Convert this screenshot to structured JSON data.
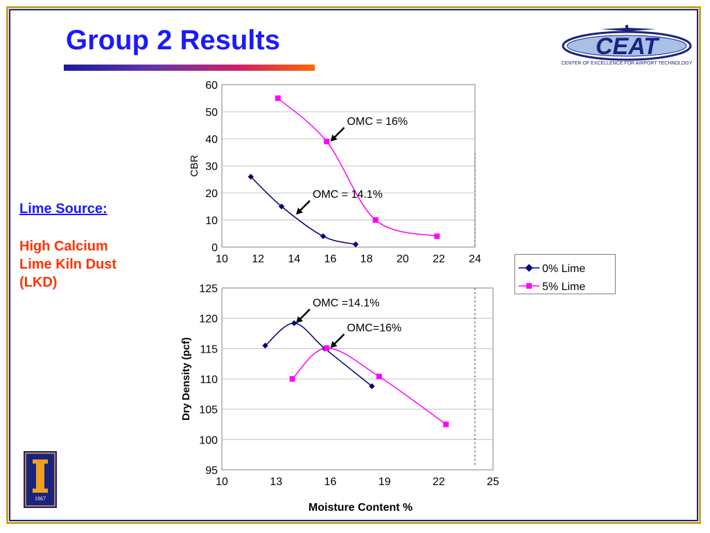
{
  "slide": {
    "title": "Group 2 Results",
    "side_heading": "Lime Source:",
    "side_text": "High Calcium\nLime Kiln Dust\n(LKD)"
  },
  "logo": {
    "text": "CEAT",
    "caption": "CENTER OF EXCELLENCE FOR AIRPORT TECHNOLOGY"
  },
  "seal": {
    "year": "1867"
  },
  "colors": {
    "series0": "#000080",
    "series1": "#ff00ff",
    "title": "#1a1aff",
    "side_text": "#ff3300"
  },
  "charts": {
    "legend": [
      "0% Lime",
      "5% Lime"
    ],
    "cbr": {
      "ylabel": "CBR"
    },
    "density": {
      "ylabel": "Dry Density (pcf)",
      "xlabel": "Moisture Content %"
    }
  },
  "chart_data": [
    {
      "type": "line",
      "title": "",
      "xlabel": "",
      "ylabel": "CBR",
      "xlim": [
        10,
        24
      ],
      "ylim": [
        0,
        60
      ],
      "xticks": [
        10,
        12,
        14,
        16,
        18,
        20,
        22,
        24
      ],
      "yticks": [
        0,
        10,
        20,
        30,
        40,
        50,
        60
      ],
      "grid": true,
      "legend": "right",
      "series": [
        {
          "name": "0% Lime",
          "marker": "diamond",
          "x": [
            11.6,
            13.3,
            15.6,
            17.4
          ],
          "y": [
            26,
            15,
            4,
            1
          ]
        },
        {
          "name": "5% Lime",
          "marker": "square",
          "x": [
            13.1,
            15.8,
            18.5,
            21.9
          ],
          "y": [
            55,
            39,
            10,
            4
          ]
        }
      ],
      "annotations": [
        {
          "text": "OMC = 16%",
          "x": 16,
          "y": 39
        },
        {
          "text": "OMC = 14.1%",
          "x": 14.1,
          "y": 12
        }
      ]
    },
    {
      "type": "line",
      "title": "",
      "xlabel": "Moisture Content %",
      "ylabel": "Dry Density (pcf)",
      "xlim": [
        10,
        25
      ],
      "ylim": [
        95,
        125
      ],
      "xticks": [
        10,
        13,
        16,
        19,
        22,
        25
      ],
      "yticks": [
        95,
        100,
        105,
        110,
        115,
        120,
        125
      ],
      "grid": true,
      "legend": "right",
      "series": [
        {
          "name": "0% Lime",
          "marker": "diamond",
          "x": [
            12.4,
            14.0,
            15.7,
            18.3
          ],
          "y": [
            115.5,
            119.2,
            115.0,
            108.8
          ]
        },
        {
          "name": "5% Lime",
          "marker": "square",
          "x": [
            13.9,
            15.8,
            18.7,
            22.4
          ],
          "y": [
            110.0,
            115.1,
            110.4,
            102.5
          ]
        }
      ],
      "annotations": [
        {
          "text": "OMC =14.1%",
          "x": 14.1,
          "y": 119.2
        },
        {
          "text": "OMC=16%",
          "x": 16,
          "y": 115.1
        }
      ]
    }
  ]
}
